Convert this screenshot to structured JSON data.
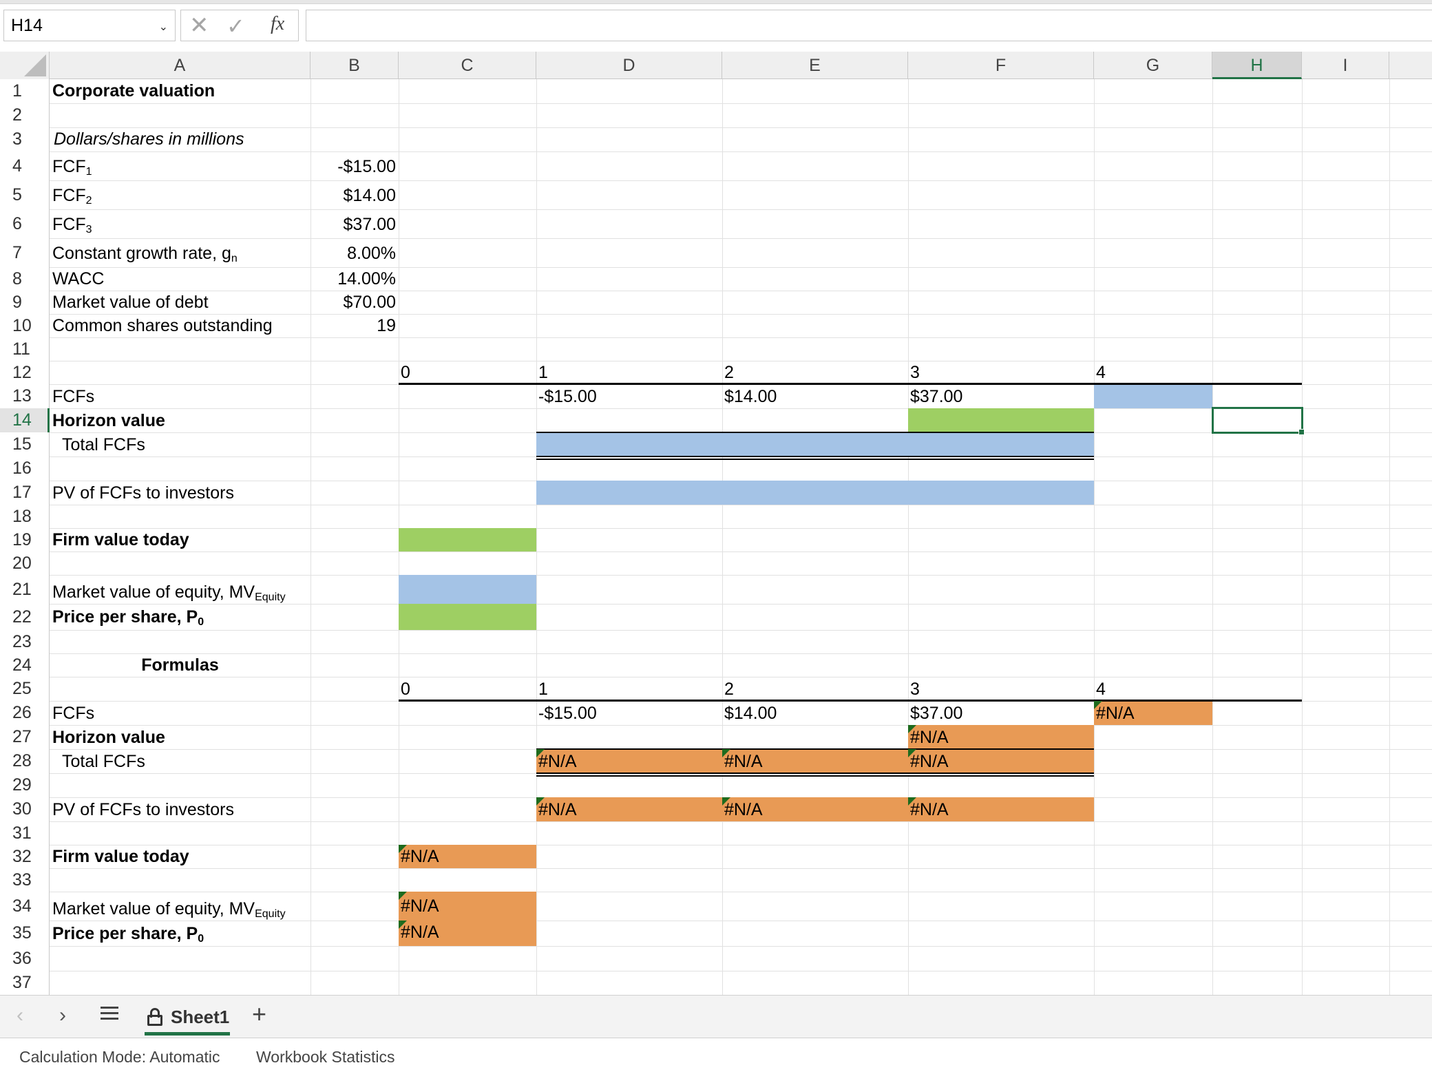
{
  "formula_bar": {
    "name_box": "H14",
    "name_box_dropdown": "chevron-down-icon",
    "cancel_glyph": "✕",
    "enter_glyph": "✓",
    "fx_label": "fx",
    "formula_value": ""
  },
  "columns": [
    "A",
    "B",
    "C",
    "D",
    "E",
    "F",
    "G",
    "H",
    "I"
  ],
  "selected_column": "H",
  "rows": [
    "1",
    "2",
    "3",
    "4",
    "5",
    "6",
    "7",
    "8",
    "9",
    "10",
    "11",
    "12",
    "13",
    "14",
    "15",
    "16",
    "17",
    "18",
    "19",
    "20",
    "21",
    "22",
    "23",
    "24",
    "25",
    "26",
    "27",
    "28",
    "29",
    "30",
    "31",
    "32",
    "33",
    "34",
    "35",
    "36",
    "37"
  ],
  "selected_row": "14",
  "inputs": {
    "title": "Corporate valuation",
    "units": "Dollars/shares in millions",
    "fcf1_label": "FCF",
    "fcf1_sub": "1",
    "fcf1_value": "-$15.00",
    "fcf2_label": "FCF",
    "fcf2_sub": "2",
    "fcf2_value": "$14.00",
    "fcf3_label": "FCF",
    "fcf3_sub": "3",
    "fcf3_value": "$37.00",
    "growth_label": "Constant growth rate, g",
    "growth_sub": "n",
    "growth_value": "8.00%",
    "wacc_label": "WACC",
    "wacc_value": "14.00%",
    "debt_label": "Market value of debt",
    "debt_value": "$70.00",
    "shares_label": "Common shares outstanding",
    "shares_value": "19"
  },
  "timeline_top": {
    "periods": [
      "0",
      "1",
      "2",
      "3",
      "4"
    ],
    "fcfs_label": "FCFs",
    "fcfs": [
      "-$15.00",
      "$14.00",
      "$37.00"
    ],
    "horizon_label": "Horizon value",
    "total_label": "Total FCFs",
    "pv_label": "PV of FCFs to investors",
    "firm_label": "Firm value today",
    "mve_label": "Market value of equity, MV",
    "mve_sub": "Equity",
    "price_label": "Price per share, P",
    "price_sub": "0"
  },
  "formulas_section": {
    "header": "Formulas",
    "periods": [
      "0",
      "1",
      "2",
      "3",
      "4"
    ],
    "fcfs_label": "FCFs",
    "fcfs": [
      "-$15.00",
      "$14.00",
      "$37.00",
      "#N/A"
    ],
    "horizon_label": "Horizon value",
    "horizon_value": "#N/A",
    "total_label": "Total FCFs",
    "total_values": [
      "#N/A",
      "#N/A",
      "#N/A"
    ],
    "pv_label": "PV of FCFs to investors",
    "pv_values": [
      "#N/A",
      "#N/A",
      "#N/A"
    ],
    "firm_label": "Firm value today",
    "firm_value": "#N/A",
    "mve_label": "Market value of equity, MV",
    "mve_sub": "Equity",
    "mve_value": "#N/A",
    "price_label": "Price per share, P",
    "price_sub": "0",
    "price_value": "#N/A"
  },
  "colors": {
    "green_fill": "#9ecf63",
    "blue_fill": "#a4c3e6",
    "orange_fill": "#e89a55",
    "selection": "#217346"
  },
  "tabs": {
    "prev": "‹",
    "next": "›",
    "sheet_name": "Sheet1",
    "add": "+"
  },
  "status": {
    "calc_mode": "Calculation Mode: Automatic",
    "workbook_stats": "Workbook Statistics"
  }
}
